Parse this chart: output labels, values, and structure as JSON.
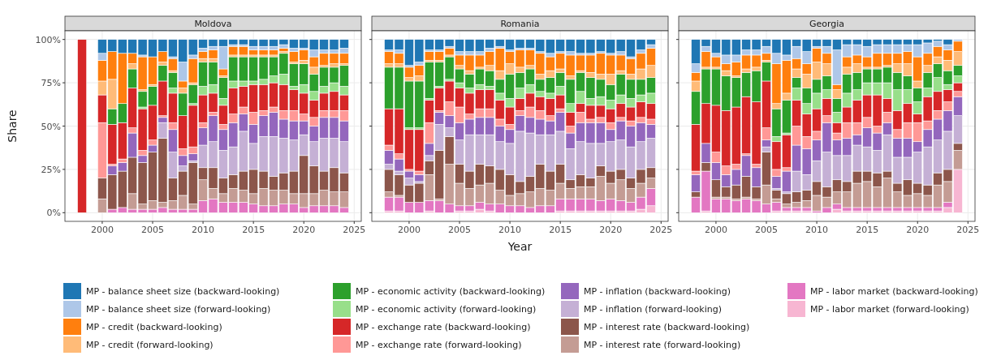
{
  "chart_data": [
    {
      "type": "bar",
      "title": "Moldova",
      "ylabel": "Share",
      "stacked": true,
      "grid": true,
      "legend": "bottom",
      "xlim": [
        1996.3,
        2025.7
      ],
      "xticks": [
        2000,
        2005,
        2010,
        2015,
        2020,
        2025
      ],
      "ylim": [
        -5,
        105
      ],
      "yticks": [
        {
          "value": 0,
          "label": "0%"
        },
        {
          "value": 25,
          "label": "25%"
        },
        {
          "value": 50,
          "label": "50%"
        },
        {
          "value": 75,
          "label": "75%"
        },
        {
          "value": 100,
          "label": "100%"
        }
      ],
      "x": [
        1998,
        2000,
        2001,
        2002,
        2003,
        2004,
        2005,
        2006,
        2007,
        2008,
        2009,
        2010,
        2011,
        2012,
        2013,
        2014,
        2015,
        2016,
        2017,
        2018,
        2019,
        2020,
        2021,
        2022,
        2023,
        2024
      ],
      "series": [
        {
          "name": "MP - labor market (forward-looking)",
          "color": "#f7b6d2",
          "values": [
            0,
            0,
            0,
            0,
            0,
            0,
            0,
            0,
            0,
            0,
            0,
            0,
            0,
            0,
            0,
            0,
            0,
            0,
            0,
            0,
            0,
            0,
            0,
            0,
            0,
            0
          ]
        },
        {
          "name": "MP - labor market (backward-looking)",
          "color": "#e377c2",
          "values": [
            0,
            0,
            2,
            3,
            2,
            2,
            2,
            3,
            2,
            2,
            2,
            7,
            8,
            6,
            6,
            6,
            5,
            4,
            4,
            5,
            5,
            3,
            4,
            4,
            4,
            3
          ]
        },
        {
          "name": "MP - interest rate (forward-looking)",
          "color": "#c49c94",
          "values": [
            0,
            8,
            0,
            0,
            9,
            3,
            5,
            3,
            5,
            8,
            3,
            12,
            6,
            5,
            8,
            7,
            6,
            10,
            9,
            8,
            6,
            8,
            7,
            9,
            8,
            9
          ]
        },
        {
          "name": "MP - interest rate (backward-looking)",
          "color": "#8c564b",
          "values": [
            0,
            12,
            20,
            21,
            21,
            24,
            28,
            37,
            13,
            14,
            24,
            7,
            12,
            9,
            8,
            11,
            14,
            10,
            8,
            10,
            13,
            22,
            16,
            11,
            14,
            11
          ]
        },
        {
          "name": "MP - inflation (forward-looking)",
          "color": "#c5b0d5",
          "values": [
            0,
            0,
            0,
            0,
            0,
            0,
            0,
            9,
            15,
            3,
            1,
            13,
            15,
            16,
            16,
            23,
            15,
            20,
            23,
            20,
            18,
            12,
            14,
            19,
            17,
            18
          ]
        },
        {
          "name": "MP - inflation (backward-looking)",
          "color": "#9467bd",
          "values": [
            0,
            0,
            5,
            5,
            14,
            4,
            4,
            3,
            13,
            6,
            4,
            10,
            15,
            12,
            14,
            10,
            11,
            12,
            14,
            11,
            11,
            8,
            9,
            12,
            12,
            12
          ]
        },
        {
          "name": "MP - exchange rate (forward-looking)",
          "color": "#ff9896",
          "values": [
            0,
            32,
            1,
            2,
            3,
            3,
            3,
            1,
            4,
            4,
            4,
            3,
            2,
            3,
            5,
            4,
            7,
            3,
            3,
            5,
            6,
            4,
            5,
            4,
            4,
            6
          ]
        },
        {
          "name": "MP - exchange rate (backward-looking)",
          "color": "#d62728",
          "values": [
            100,
            16,
            23,
            21,
            23,
            24,
            20,
            20,
            17,
            19,
            24,
            16,
            11,
            11,
            15,
            12,
            16,
            15,
            14,
            15,
            12,
            12,
            10,
            10,
            11,
            9
          ]
        },
        {
          "name": "MP - economic activity (forward-looking)",
          "color": "#98df8a",
          "values": [
            0,
            0,
            0,
            0,
            0,
            1,
            0,
            0,
            3,
            0,
            1,
            5,
            5,
            4,
            4,
            3,
            2,
            3,
            4,
            6,
            2,
            5,
            5,
            4,
            5,
            5
          ]
        },
        {
          "name": "MP - economic activity (backward-looking)",
          "color": "#2ca02c",
          "values": [
            0,
            0,
            9,
            11,
            11,
            9,
            11,
            9,
            9,
            13,
            11,
            14,
            13,
            12,
            14,
            14,
            14,
            13,
            11,
            12,
            13,
            12,
            10,
            11,
            9,
            12
          ]
        },
        {
          "name": "MP - credit (forward-looking)",
          "color": "#ffbb78",
          "values": [
            0,
            8,
            17,
            0,
            3,
            1,
            1,
            2,
            1,
            3,
            1,
            2,
            2,
            1,
            1,
            1,
            1,
            1,
            1,
            1,
            1,
            2,
            4,
            1,
            2,
            1
          ]
        },
        {
          "name": "MP - credit (backward-looking)",
          "color": "#ff7f0e",
          "values": [
            0,
            12,
            16,
            29,
            6,
            19,
            16,
            6,
            7,
            4,
            14,
            4,
            5,
            4,
            5,
            5,
            3,
            3,
            3,
            2,
            6,
            6,
            6,
            7,
            6,
            6
          ]
        },
        {
          "name": "MP - balance sheet size (forward-looking)",
          "color": "#aec7e8",
          "values": [
            0,
            4,
            0,
            0,
            0,
            1,
            0,
            0,
            1,
            11,
            2,
            2,
            2,
            13,
            1,
            1,
            2,
            2,
            2,
            2,
            2,
            1,
            4,
            2,
            2,
            3
          ]
        },
        {
          "name": "MP - balance sheet size (backward-looking)",
          "color": "#1f77b4",
          "values": [
            0,
            8,
            7,
            8,
            8,
            9,
            10,
            7,
            10,
            13,
            9,
            5,
            4,
            4,
            3,
            3,
            4,
            4,
            4,
            3,
            5,
            5,
            6,
            6,
            6,
            5
          ]
        }
      ]
    },
    {
      "type": "bar",
      "title": "Romania",
      "xlabel": "Year",
      "stacked": true,
      "grid": true,
      "tick_labels": "x",
      "xlim": [
        1996.3,
        2025.7
      ],
      "xticks": [
        2000,
        2005,
        2010,
        2015,
        2020,
        2025
      ],
      "ylim": [
        -5,
        105
      ],
      "yticks": [
        {
          "value": 0,
          "label": null
        },
        {
          "value": 25,
          "label": null
        },
        {
          "value": 50,
          "label": null
        },
        {
          "value": 75,
          "label": null
        },
        {
          "value": 100,
          "label": null
        }
      ],
      "x": [
        1998,
        1999,
        2000,
        2001,
        2002,
        2003,
        2004,
        2005,
        2006,
        2007,
        2008,
        2009,
        2010,
        2011,
        2012,
        2013,
        2014,
        2015,
        2016,
        2017,
        2018,
        2019,
        2020,
        2021,
        2022,
        2023,
        2024
      ],
      "series": [
        {
          "color": "#f7b6d2",
          "values": [
            1,
            1,
            0,
            0,
            1,
            0,
            0,
            1,
            1,
            2,
            1,
            0,
            0,
            0,
            0,
            0,
            0,
            1,
            1,
            1,
            1,
            1,
            1,
            1,
            1,
            2,
            4
          ]
        },
        {
          "color": "#e377c2",
          "values": [
            8,
            8,
            6,
            6,
            6,
            7,
            5,
            3,
            3,
            4,
            4,
            5,
            4,
            4,
            3,
            4,
            4,
            7,
            7,
            7,
            7,
            6,
            7,
            6,
            5,
            7,
            10
          ]
        },
        {
          "color": "#c49c94",
          "values": [
            3,
            1,
            0,
            0,
            15,
            1,
            23,
            13,
            10,
            10,
            12,
            8,
            6,
            7,
            9,
            10,
            9,
            9,
            6,
            7,
            7,
            14,
            9,
            12,
            8,
            8,
            6
          ]
        },
        {
          "color": "#8c564b",
          "values": [
            13,
            12,
            10,
            11,
            8,
            28,
            16,
            11,
            10,
            12,
            10,
            12,
            12,
            7,
            9,
            14,
            11,
            11,
            5,
            7,
            5,
            6,
            7,
            6,
            6,
            8,
            6
          ]
        },
        {
          "color": "#c5b0d5",
          "values": [
            3,
            2,
            4,
            1,
            3,
            15,
            5,
            14,
            21,
            17,
            18,
            16,
            18,
            29,
            25,
            17,
            21,
            19,
            18,
            19,
            20,
            13,
            17,
            17,
            18,
            16,
            17
          ]
        },
        {
          "color": "#9467bd",
          "values": [
            8,
            7,
            4,
            4,
            7,
            7,
            7,
            10,
            9,
            10,
            10,
            9,
            8,
            9,
            9,
            9,
            8,
            11,
            9,
            11,
            12,
            12,
            7,
            11,
            12,
            11,
            8
          ]
        },
        {
          "color": "#ff9896",
          "values": [
            3,
            3,
            1,
            2,
            12,
            1,
            8,
            9,
            3,
            5,
            5,
            4,
            3,
            3,
            6,
            5,
            3,
            2,
            4,
            6,
            2,
            3,
            4,
            2,
            3,
            3,
            3
          ]
        },
        {
          "color": "#d62728",
          "values": [
            21,
            26,
            23,
            24,
            13,
            13,
            12,
            11,
            12,
            11,
            11,
            11,
            10,
            7,
            8,
            8,
            10,
            8,
            8,
            5,
            8,
            7,
            8,
            8,
            8,
            9,
            9
          ]
        },
        {
          "color": "#98df8a",
          "values": [
            0,
            0,
            1,
            1,
            1,
            1,
            1,
            3,
            3,
            3,
            2,
            4,
            5,
            6,
            5,
            3,
            3,
            5,
            5,
            7,
            4,
            5,
            5,
            5,
            5,
            4,
            6
          ]
        },
        {
          "color": "#2ca02c",
          "values": [
            24,
            24,
            27,
            27,
            21,
            14,
            13,
            8,
            8,
            9,
            9,
            8,
            14,
            9,
            9,
            7,
            9,
            8,
            14,
            11,
            12,
            10,
            9,
            12,
            11,
            9,
            9
          ]
        },
        {
          "color": "#ffbb78",
          "values": [
            2,
            2,
            2,
            3,
            1,
            1,
            1,
            2,
            2,
            1,
            3,
            5,
            6,
            3,
            2,
            3,
            4,
            2,
            2,
            1,
            3,
            3,
            6,
            2,
            3,
            6,
            7
          ]
        },
        {
          "color": "#ff7f0e",
          "values": [
            7,
            6,
            6,
            6,
            5,
            5,
            4,
            6,
            9,
            7,
            8,
            13,
            7,
            10,
            9,
            12,
            8,
            9,
            12,
            9,
            10,
            12,
            11,
            9,
            9,
            9,
            10
          ]
        },
        {
          "color": "#aec7e8",
          "values": [
            1,
            2,
            1,
            2,
            1,
            1,
            1,
            2,
            2,
            2,
            2,
            1,
            1,
            1,
            1,
            1,
            2,
            1,
            2,
            1,
            1,
            1,
            1,
            2,
            1,
            2,
            2
          ]
        },
        {
          "color": "#1f77b4",
          "values": [
            6,
            6,
            15,
            13,
            6,
            6,
            4,
            7,
            7,
            7,
            5,
            4,
            6,
            5,
            5,
            7,
            8,
            7,
            7,
            8,
            8,
            7,
            8,
            7,
            10,
            6,
            3
          ]
        }
      ]
    },
    {
      "type": "bar",
      "title": "Georgia",
      "stacked": true,
      "grid": true,
      "tick_labels": "x",
      "xlim": [
        1996.3,
        2025.7
      ],
      "xticks": [
        2000,
        2005,
        2010,
        2015,
        2020,
        2025
      ],
      "ylim": [
        -5,
        105
      ],
      "yticks": [
        {
          "value": 0,
          "label": null
        },
        {
          "value": 25,
          "label": null
        },
        {
          "value": 50,
          "label": null
        },
        {
          "value": 75,
          "label": null
        },
        {
          "value": 100,
          "label": null
        }
      ],
      "x": [
        1998,
        1999,
        2000,
        2001,
        2002,
        2003,
        2004,
        2005,
        2006,
        2007,
        2008,
        2009,
        2010,
        2011,
        2012,
        2013,
        2014,
        2015,
        2016,
        2017,
        2018,
        2019,
        2020,
        2021,
        2022,
        2023,
        2024
      ],
      "series": [
        {
          "color": "#f7b6d2",
          "values": [
            0,
            1,
            0,
            0,
            0,
            0,
            0,
            0,
            1,
            1,
            1,
            1,
            0,
            0,
            2,
            1,
            1,
            1,
            1,
            1,
            1,
            1,
            1,
            1,
            1,
            3,
            25
          ]
        },
        {
          "color": "#e377c2",
          "values": [
            9,
            23,
            8,
            8,
            7,
            8,
            7,
            5,
            5,
            2,
            2,
            2,
            1,
            3,
            3,
            2,
            2,
            2,
            2,
            2,
            2,
            2,
            2,
            2,
            2,
            3,
            0
          ]
        },
        {
          "color": "#c49c94",
          "values": [
            0,
            0,
            1,
            1,
            1,
            1,
            1,
            11,
            2,
            2,
            3,
            4,
            9,
            6,
            7,
            9,
            14,
            15,
            12,
            17,
            9,
            7,
            8,
            7,
            13,
            12,
            11
          ]
        },
        {
          "color": "#8c564b",
          "values": [
            3,
            5,
            10,
            6,
            8,
            12,
            7,
            19,
            5,
            6,
            6,
            6,
            8,
            6,
            7,
            6,
            7,
            6,
            8,
            4,
            5,
            9,
            6,
            6,
            7,
            7,
            4
          ]
        },
        {
          "color": "#c5b0d5",
          "values": [
            0,
            0,
            0,
            0,
            0,
            0,
            0,
            3,
            1,
            1,
            12,
            9,
            12,
            20,
            14,
            15,
            15,
            14,
            13,
            21,
            15,
            13,
            18,
            22,
            19,
            22,
            16
          ]
        },
        {
          "color": "#9467bd",
          "values": [
            10,
            11,
            10,
            7,
            9,
            12,
            11,
            4,
            7,
            12,
            15,
            15,
            12,
            17,
            9,
            10,
            6,
            11,
            10,
            7,
            11,
            11,
            6,
            10,
            12,
            12,
            11
          ]
        },
        {
          "color": "#ff9896",
          "values": [
            2,
            0,
            6,
            5,
            3,
            1,
            2,
            7,
            4,
            2,
            11,
            7,
            5,
            4,
            4,
            9,
            7,
            6,
            4,
            6,
            5,
            9,
            11,
            5,
            5,
            5,
            3
          ]
        },
        {
          "color": "#d62728",
          "values": [
            27,
            23,
            27,
            32,
            33,
            33,
            36,
            27,
            16,
            19,
            15,
            13,
            13,
            10,
            6,
            9,
            13,
            13,
            18,
            8,
            11,
            11,
            5,
            14,
            11,
            7,
            5
          ]
        },
        {
          "color": "#98df8a",
          "values": [
            0,
            0,
            0,
            0,
            0,
            0,
            0,
            0,
            3,
            1,
            7,
            6,
            9,
            5,
            6,
            8,
            6,
            7,
            7,
            9,
            12,
            8,
            7,
            5,
            8,
            3,
            4
          ]
        },
        {
          "color": "#2ca02c",
          "values": [
            19,
            20,
            21,
            20,
            17,
            14,
            18,
            11,
            16,
            19,
            6,
            9,
            8,
            8,
            8,
            11,
            10,
            8,
            8,
            9,
            10,
            8,
            8,
            9,
            8,
            8,
            6
          ]
        },
        {
          "color": "#ffbb78",
          "values": [
            6,
            1,
            1,
            3,
            1,
            2,
            2,
            1,
            3,
            4,
            5,
            8,
            10,
            7,
            5,
            4,
            5,
            1,
            1,
            1,
            5,
            7,
            4,
            4,
            4,
            6,
            8
          ]
        },
        {
          "color": "#ff7f0e",
          "values": [
            5,
            9,
            6,
            4,
            8,
            8,
            7,
            4,
            23,
            19,
            6,
            6,
            8,
            6,
            3,
            6,
            5,
            6,
            8,
            7,
            6,
            7,
            14,
            7,
            6,
            6,
            6
          ]
        },
        {
          "color": "#aec7e8",
          "values": [
            5,
            3,
            2,
            5,
            4,
            3,
            3,
            4,
            6,
            3,
            7,
            7,
            1,
            4,
            20,
            7,
            6,
            6,
            5,
            5,
            5,
            4,
            7,
            6,
            3,
            3,
            1
          ]
        },
        {
          "color": "#1f77b4",
          "values": [
            14,
            4,
            8,
            9,
            9,
            6,
            6,
            4,
            8,
            9,
            4,
            7,
            4,
            4,
            6,
            3,
            3,
            4,
            3,
            3,
            3,
            3,
            3,
            2,
            1,
            3,
            0
          ]
        }
      ]
    }
  ]
}
